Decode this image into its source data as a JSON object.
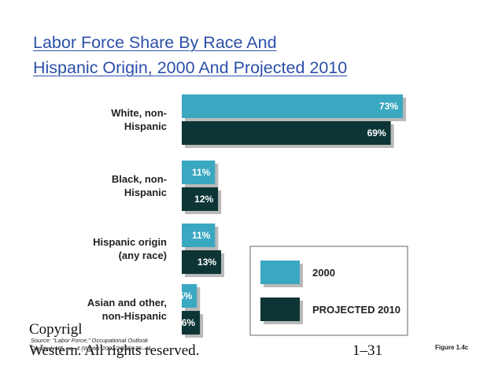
{
  "slide": {
    "title_line1": "Labor Force Share By Race And",
    "title_line2": "Hispanic Origin, 2000 And Projected 2010",
    "copyright_text": "Copyrigl",
    "copyright_owner": "Western. All rights reserved.",
    "source_line1": "Source: “Labor Force,” Occupational Outlook",
    "source_line2": "Quarterly 45, no. 4 (Winter 2001/2002): 36–41.",
    "page_number": "1–31",
    "figure_label": "Figure 1.4c"
  },
  "chart_data": {
    "type": "bar",
    "orientation": "horizontal",
    "title": "Labor Force Share By Race And Hispanic Origin, 2000 And Projected 2010",
    "categories": [
      [
        "White, non-",
        "Hispanic"
      ],
      [
        "Black, non-",
        "Hispanic"
      ],
      [
        "Hispanic origin",
        "(any race)"
      ],
      [
        "Asian and other,",
        "non-Hispanic"
      ]
    ],
    "series": [
      {
        "name": "2000",
        "color": "#3aa8c1",
        "values": [
          73,
          11,
          11,
          5
        ],
        "labels": [
          "73%",
          "11%",
          "11%",
          "5%"
        ]
      },
      {
        "name": "PROJECTED 2010",
        "color": "#0a3535",
        "values": [
          69,
          12,
          13,
          6
        ],
        "labels": [
          "69%",
          "12%",
          "13%",
          "6%"
        ]
      }
    ],
    "xlim": [
      0,
      100
    ],
    "unit": "%",
    "legend_position": "bottom-right",
    "grid": false
  }
}
